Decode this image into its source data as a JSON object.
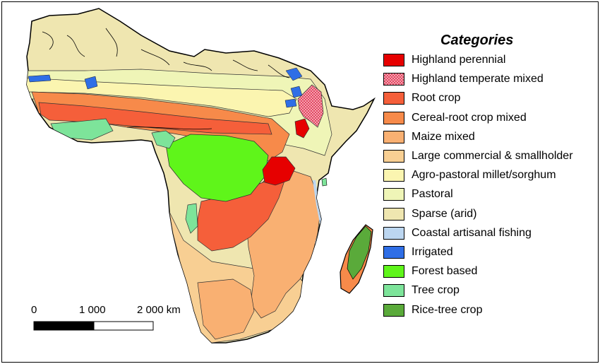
{
  "legend": {
    "title": "Categories",
    "items": [
      {
        "label": "Highland perennial",
        "color": "#e60000",
        "pattern": "solid"
      },
      {
        "label": "Highland temperate mixed",
        "color": "#f7a1b0",
        "pattern": "checker"
      },
      {
        "label": "Root crop",
        "color": "#f55f3a",
        "pattern": "solid"
      },
      {
        "label": "Cereal-root crop mixed",
        "color": "#f78a4a",
        "pattern": "solid"
      },
      {
        "label": "Maize mixed",
        "color": "#f9b072",
        "pattern": "solid"
      },
      {
        "label": "Large commercial & smallholder",
        "color": "#f8cf93",
        "pattern": "solid"
      },
      {
        "label": "Agro-pastoral millet/sorghum",
        "color": "#fbf5b0",
        "pattern": "solid"
      },
      {
        "label": "Pastoral",
        "color": "#eff5b7",
        "pattern": "solid"
      },
      {
        "label": "Sparse (arid)",
        "color": "#efe6b0",
        "pattern": "solid"
      },
      {
        "label": "Coastal artisanal fishing",
        "color": "#bcd6f0",
        "pattern": "solid"
      },
      {
        "label": "Irrigated",
        "color": "#2f6ee6",
        "pattern": "solid"
      },
      {
        "label": "Forest based",
        "color": "#5ff51a",
        "pattern": "solid"
      },
      {
        "label": "Tree crop",
        "color": "#7de49a",
        "pattern": "solid"
      },
      {
        "label": "Rice-tree crop",
        "color": "#5aaa3a",
        "pattern": "solid"
      }
    ]
  },
  "scale_bar": {
    "labels": [
      "0",
      "1 000",
      "2 000 km"
    ]
  }
}
